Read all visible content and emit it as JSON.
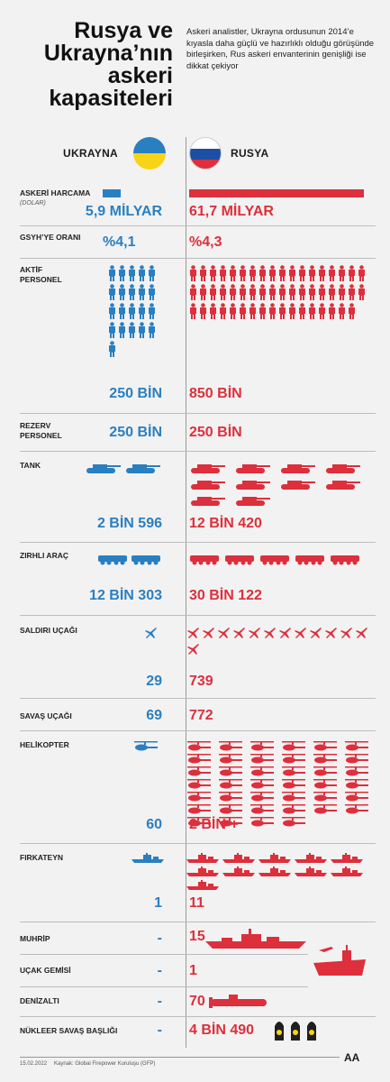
{
  "title": "Rusya ve Ukrayna’nın askeri kapasiteleri",
  "subtitle": "Askeri analistler, Ukrayna ordusunun 2014’e kıyasla daha güçlü ve hazırlıklı olduğu görüşünde birleşirken, Rus askeri envanterinin genişliği ise dikkat çekiyor",
  "countries": {
    "left": "UKRAYNA",
    "right": "RUSYA"
  },
  "colors": {
    "ukraine": "#2a7fc1",
    "russia": "#dd2f3c"
  },
  "rows": {
    "spending": {
      "label": "ASKERİ HARCAMA",
      "unit": "(DOLAR)",
      "ua": "5,9 MİLYAR",
      "ru": "61,7 MİLYAR",
      "ua_ratio": 0.096
    },
    "gdp": {
      "label": "GSYH’YE ORANI",
      "ua": "%4,1",
      "ru": "%4,3"
    },
    "active": {
      "label": "AKTİF PERSONEL",
      "ua": "250 BİN",
      "ru": "850 BİN",
      "ua_icons": 21,
      "ru_icons": 53
    },
    "reserve": {
      "label": "REZERV PERSONEL",
      "ua": "250 BİN",
      "ru": "250 BİN"
    },
    "tank": {
      "label": "TANK",
      "ua": "2 BİN 596",
      "ru": "12 BİN 420",
      "ua_icons": 2,
      "ru_icons": 10
    },
    "armored": {
      "label": "ZIRHLI ARAÇ",
      "ua": "12 BİN 303",
      "ru": "30 BİN 122",
      "ua_icons": 2,
      "ru_icons": 5
    },
    "attack": {
      "label": "SALDIRI UÇAĞI",
      "ua": "29",
      "ru": "739",
      "ua_icons": 1,
      "ru_icons": 13
    },
    "fighter": {
      "label": "SAVAŞ UÇAĞI",
      "ua": "69",
      "ru": "772"
    },
    "heli": {
      "label": "HELİKOPTER",
      "ua": "60",
      "ru": "2 BİN +",
      "ua_icons": 1,
      "ru_icons": 40
    },
    "frigate": {
      "label": "FIRKATEYN",
      "ua": "1",
      "ru": "11",
      "ua_icons": 1,
      "ru_icons": 11
    },
    "destroyer": {
      "label": "MUHRİP",
      "ua": "-",
      "ru": "15"
    },
    "carrier": {
      "label": "UÇAK GEMİSİ",
      "ua": "-",
      "ru": "1"
    },
    "submarine": {
      "label": "DENİZALTI",
      "ua": "-",
      "ru": "70"
    },
    "nuclear": {
      "label": "NÜKLEER SAVAŞ BAŞLIĞI",
      "ua": "-",
      "ru": "4 BİN 490"
    }
  },
  "footer": {
    "date": "15.02.2022",
    "source": "Kaynak: Global Firepower Kuruluşu (GFP)",
    "logo": "AA"
  }
}
